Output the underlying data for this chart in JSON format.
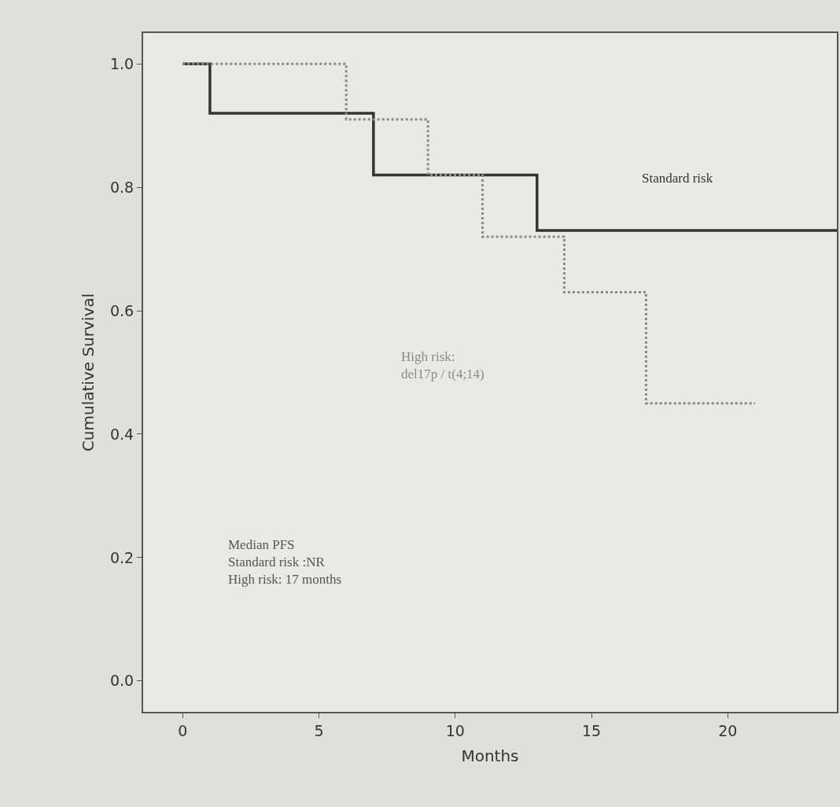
{
  "chart_data": {
    "type": "step",
    "xlabel": "Months",
    "ylabel": "Cumulative Survival",
    "xlim": [
      -1.45,
      24
    ],
    "xticks": [
      0,
      5,
      10,
      15,
      20
    ],
    "ylim": [
      -0.05,
      1.05
    ],
    "yticks": [
      {
        "value": 0,
        "label": "0.0"
      },
      {
        "value": 0.2,
        "label": "0.2"
      },
      {
        "value": 0.4,
        "label": "0.4"
      },
      {
        "value": 0.6,
        "label": "0.6"
      },
      {
        "value": 0.8,
        "label": "0.8"
      },
      {
        "value": 1,
        "label": "1.0"
      }
    ],
    "grid": false,
    "legend": false,
    "marker": "none",
    "series": [
      {
        "name": "Standard risk",
        "color": "#333333",
        "line_style": "solid",
        "x": [
          0,
          1,
          7,
          13,
          24
        ],
        "values": [
          1,
          0.92,
          0.82,
          0.73,
          0.73
        ]
      },
      {
        "name": "High risk:\ndel17p / t(4;14)",
        "color": "#8a8a8a",
        "line_style": "dotted",
        "x": [
          0,
          6,
          9,
          11,
          14,
          17,
          21
        ],
        "values": [
          1,
          0.91,
          0.82,
          0.72,
          0.63,
          0.45,
          0.45
        ]
      }
    ],
    "annotations": [
      "Median PFS\nStandard risk :NR\nHigh risk: 17 months"
    ]
  }
}
